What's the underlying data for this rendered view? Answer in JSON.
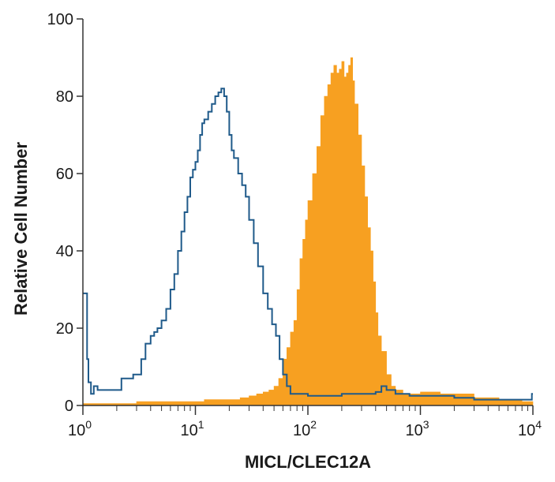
{
  "chart_data": {
    "type": "area",
    "title": "",
    "xlabel": "MICL/CLEC12A",
    "ylabel": "Relative Cell Number",
    "xscale": "log",
    "xlim": [
      1,
      10000
    ],
    "ylim": [
      0,
      100
    ],
    "grid": false,
    "legend": "none",
    "y_ticks": [
      {
        "value": 0,
        "label": "0"
      },
      {
        "value": 20,
        "label": "20"
      },
      {
        "value": 40,
        "label": "40"
      },
      {
        "value": 60,
        "label": "60"
      },
      {
        "value": 80,
        "label": "80"
      },
      {
        "value": 100,
        "label": "100"
      }
    ],
    "x_ticks": [
      {
        "value": 1,
        "base": "10",
        "exp": "0"
      },
      {
        "value": 10,
        "base": "10",
        "exp": "1"
      },
      {
        "value": 100,
        "base": "10",
        "exp": "2"
      },
      {
        "value": 1000,
        "base": "10",
        "exp": "3"
      },
      {
        "value": 10000,
        "base": "10",
        "exp": "4"
      }
    ],
    "series": [
      {
        "style": "outline",
        "color": "#1f5a8a",
        "points": [
          [
            1.0,
            29
          ],
          [
            1.06,
            29
          ],
          [
            1.09,
            12
          ],
          [
            1.12,
            6
          ],
          [
            1.18,
            3
          ],
          [
            1.25,
            5
          ],
          [
            1.35,
            4
          ],
          [
            1.5,
            4
          ],
          [
            1.7,
            4
          ],
          [
            2.0,
            4
          ],
          [
            2.2,
            7
          ],
          [
            2.5,
            7
          ],
          [
            2.8,
            8
          ],
          [
            3.0,
            8
          ],
          [
            3.3,
            12
          ],
          [
            3.6,
            16
          ],
          [
            4.0,
            18
          ],
          [
            4.3,
            19
          ],
          [
            4.6,
            20
          ],
          [
            5.0,
            22
          ],
          [
            5.5,
            25
          ],
          [
            6.0,
            30
          ],
          [
            6.5,
            34
          ],
          [
            7.0,
            40
          ],
          [
            7.5,
            45
          ],
          [
            8.0,
            50
          ],
          [
            8.5,
            54
          ],
          [
            9.0,
            59
          ],
          [
            9.5,
            61
          ],
          [
            10.0,
            63
          ],
          [
            10.5,
            66
          ],
          [
            11.0,
            70
          ],
          [
            11.5,
            73
          ],
          [
            12.0,
            74
          ],
          [
            13.0,
            76
          ],
          [
            14.0,
            78
          ],
          [
            15.0,
            80
          ],
          [
            16.0,
            81
          ],
          [
            17.0,
            82
          ],
          [
            18.0,
            80
          ],
          [
            19.0,
            76
          ],
          [
            20.0,
            70
          ],
          [
            21.0,
            66
          ],
          [
            22.0,
            64
          ],
          [
            24.0,
            60
          ],
          [
            26.0,
            57
          ],
          [
            28.0,
            54
          ],
          [
            30.0,
            48
          ],
          [
            33.0,
            42
          ],
          [
            36.0,
            36
          ],
          [
            40.0,
            29
          ],
          [
            44.0,
            25
          ],
          [
            48.0,
            21
          ],
          [
            52.0,
            18
          ],
          [
            56.0,
            12
          ],
          [
            60.0,
            8
          ],
          [
            65.0,
            5
          ],
          [
            70.0,
            3
          ],
          [
            80.0,
            3
          ],
          [
            100.0,
            2.5
          ],
          [
            150.0,
            2.5
          ],
          [
            200.0,
            3
          ],
          [
            300.0,
            3
          ],
          [
            400.0,
            3.5
          ],
          [
            450.0,
            5
          ],
          [
            500.0,
            4
          ],
          [
            600.0,
            3
          ],
          [
            700.0,
            3
          ],
          [
            800.0,
            2.5
          ],
          [
            1000.0,
            2.5
          ],
          [
            1500.0,
            2.5
          ],
          [
            2000.0,
            2
          ],
          [
            3000.0,
            1.5
          ],
          [
            5000.0,
            1.5
          ],
          [
            9500.0,
            1.5
          ],
          [
            9800.0,
            3
          ],
          [
            10000.0,
            3
          ]
        ]
      },
      {
        "style": "filled",
        "color": "#f7a021",
        "points": [
          [
            1.0,
            0.5
          ],
          [
            2.0,
            0.5
          ],
          [
            3.0,
            1
          ],
          [
            5.0,
            1
          ],
          [
            8.0,
            1
          ],
          [
            12.0,
            1.5
          ],
          [
            18.0,
            1.5
          ],
          [
            25.0,
            2
          ],
          [
            30.0,
            2.5
          ],
          [
            35.0,
            3
          ],
          [
            40.0,
            3.5
          ],
          [
            45.0,
            4
          ],
          [
            50.0,
            5
          ],
          [
            55.0,
            7
          ],
          [
            60.0,
            12
          ],
          [
            65.0,
            15
          ],
          [
            70.0,
            19
          ],
          [
            75.0,
            22
          ],
          [
            80.0,
            30
          ],
          [
            85.0,
            38
          ],
          [
            90.0,
            43
          ],
          [
            95.0,
            48
          ],
          [
            100.0,
            53
          ],
          [
            110.0,
            60
          ],
          [
            120.0,
            67
          ],
          [
            130.0,
            75
          ],
          [
            140.0,
            80
          ],
          [
            150.0,
            83
          ],
          [
            160.0,
            86
          ],
          [
            170.0,
            88
          ],
          [
            180.0,
            86
          ],
          [
            190.0,
            87
          ],
          [
            200.0,
            89
          ],
          [
            210.0,
            85
          ],
          [
            220.0,
            86
          ],
          [
            230.0,
            88
          ],
          [
            240.0,
            90
          ],
          [
            250.0,
            84
          ],
          [
            260.0,
            78
          ],
          [
            280.0,
            70
          ],
          [
            300.0,
            62
          ],
          [
            320.0,
            54
          ],
          [
            340.0,
            46
          ],
          [
            360.0,
            40
          ],
          [
            380.0,
            32
          ],
          [
            400.0,
            24
          ],
          [
            420.0,
            18
          ],
          [
            450.0,
            14
          ],
          [
            500.0,
            8
          ],
          [
            550.0,
            5
          ],
          [
            600.0,
            4
          ],
          [
            700.0,
            3
          ],
          [
            800.0,
            3
          ],
          [
            1000.0,
            3.5
          ],
          [
            1500.0,
            3
          ],
          [
            2000.0,
            3
          ],
          [
            3000.0,
            2
          ],
          [
            5000.0,
            1.5
          ],
          [
            8000.0,
            1
          ],
          [
            10000.0,
            1
          ]
        ]
      }
    ]
  }
}
